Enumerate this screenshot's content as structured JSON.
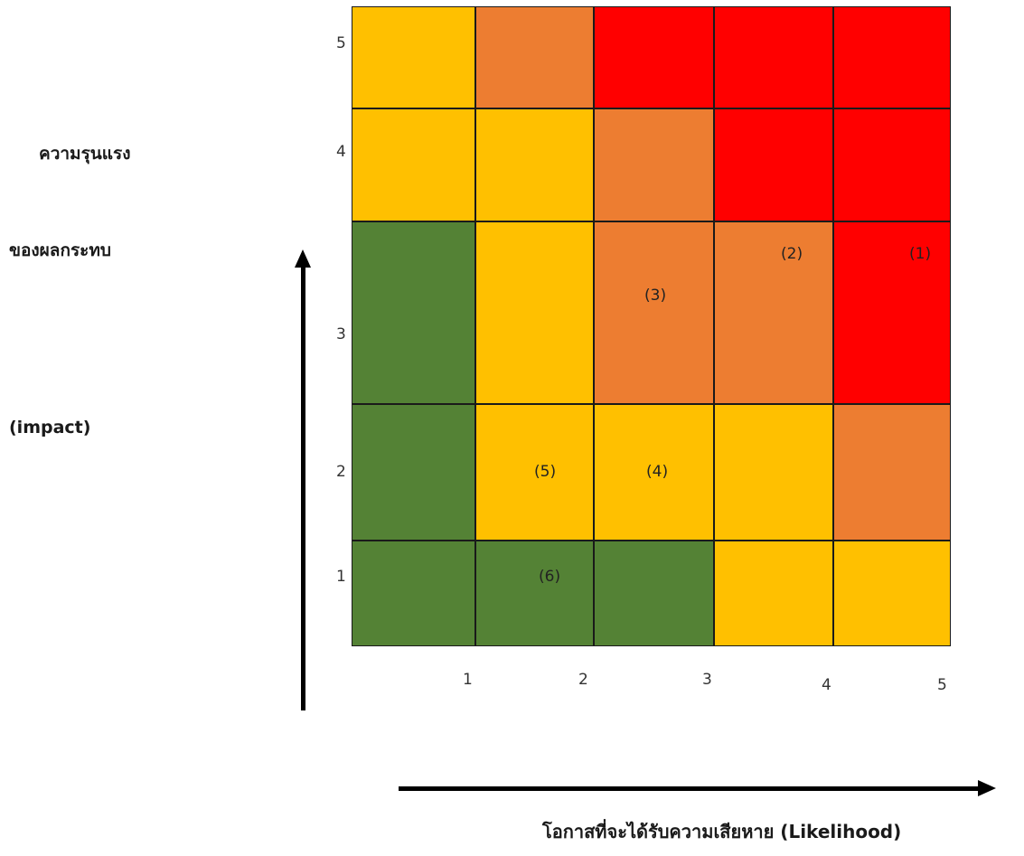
{
  "impact_label": {
    "line1": "ความรุนแรง",
    "line2": "ของผลกระทบ",
    "line3": "(impact)"
  },
  "likelihood_label": "โอกาสที่จะได้รับความเสียหาย (Likelihood)",
  "y_ticks": [
    "5",
    "4",
    "3",
    "2",
    "1"
  ],
  "x_ticks": [
    "1",
    "2",
    "3",
    "4",
    "5"
  ],
  "colors": {
    "green": "#548235",
    "yellow": "#ffc000",
    "orange": "#ed7d31",
    "red": "#ff0000"
  },
  "matrix": {
    "rows": [
      {
        "impact": 5,
        "cells": [
          "yellow",
          "orange",
          "red",
          "red",
          "red"
        ]
      },
      {
        "impact": 4,
        "cells": [
          "yellow",
          "yellow",
          "orange",
          "red",
          "red"
        ]
      },
      {
        "impact": 3,
        "cells": [
          "green",
          "yellow",
          "orange",
          "orange",
          "red"
        ]
      },
      {
        "impact": 2,
        "cells": [
          "green",
          "yellow",
          "yellow",
          "yellow",
          "orange"
        ]
      },
      {
        "impact": 1,
        "cells": [
          "green",
          "green",
          "green",
          "yellow",
          "yellow"
        ]
      }
    ]
  },
  "risk_markers": [
    {
      "label": "(1)",
      "impact": 3,
      "likelihood": 5
    },
    {
      "label": "(2)",
      "impact": 3,
      "likelihood": 4
    },
    {
      "label": "(3)",
      "impact": 3,
      "likelihood": 3
    },
    {
      "label": "(4)",
      "impact": 2,
      "likelihood": 3
    },
    {
      "label": "(5)",
      "impact": 2,
      "likelihood": 2
    },
    {
      "label": "(6)",
      "impact": 1,
      "likelihood": 2
    }
  ]
}
